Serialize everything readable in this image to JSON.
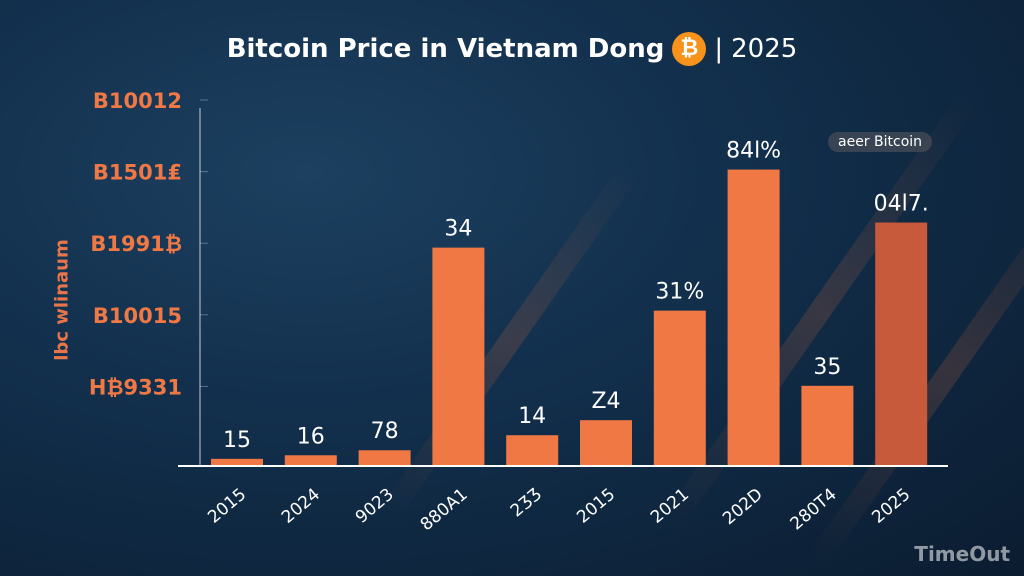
{
  "chart_data": {
    "type": "bar",
    "title": "Bitcoin Price in Vietnam Dong",
    "title_suffix": "2025",
    "title_icon": "bitcoin-icon",
    "ylabel": "lbc wlinaum",
    "ytick_labels": [
      "H₿9331",
      "B10015",
      "B1991₿",
      "B1501₤",
      "B10012"
    ],
    "ylim": [
      0,
      5
    ],
    "categories": [
      "2015",
      "2024",
      "9023",
      "880A1",
      "2ƷƷ",
      "2015",
      "2021",
      "202D",
      "280T4",
      "2025"
    ],
    "values": [
      0.1,
      0.15,
      0.22,
      3.05,
      0.43,
      0.64,
      2.17,
      4.14,
      1.12,
      3.4
    ],
    "data_labels": [
      "15",
      "16",
      "78",
      "34",
      "14",
      "Z4",
      "31%",
      "84l%",
      "35",
      "04l7."
    ],
    "legend": {
      "label": "aeer Bitcoin",
      "position": "top-right"
    },
    "grid": false,
    "colors": {
      "bar": "#f07845",
      "bar_last": "#c85a3c",
      "axis": "#ffffff",
      "tick_label": "#f07845"
    }
  },
  "watermark": "TimeOut"
}
